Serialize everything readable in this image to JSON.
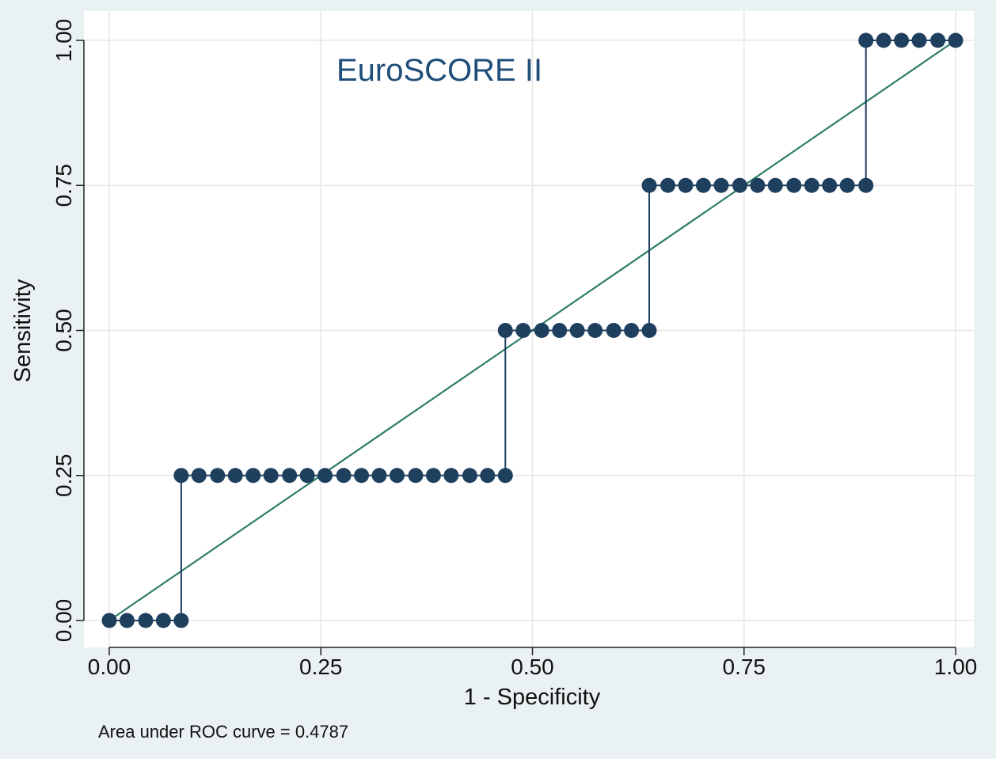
{
  "chart_data": {
    "type": "line",
    "title": "EuroSCORE II",
    "xlabel": "1 - Specificity",
    "ylabel": "Sensitivity",
    "xlim": [
      0,
      1
    ],
    "ylim": [
      0,
      1
    ],
    "x_ticks": [
      "0.00",
      "0.25",
      "0.50",
      "0.75",
      "1.00"
    ],
    "y_ticks": [
      "0.00",
      "0.25",
      "0.50",
      "0.75",
      "1.00"
    ],
    "grid": true,
    "note": "Area under ROC curve = 0.4787",
    "colors": {
      "curve": "#1f3f5f",
      "reference": "#2e7d6b",
      "grid": "#e6e6e6"
    },
    "reference_line": {
      "x": [
        0,
        1
      ],
      "y": [
        0,
        1
      ]
    },
    "series": [
      {
        "points": [
          {
            "x": 0.0,
            "y": 0.0
          },
          {
            "x": 0.021,
            "y": 0.0
          },
          {
            "x": 0.043,
            "y": 0.0
          },
          {
            "x": 0.064,
            "y": 0.0
          },
          {
            "x": 0.085,
            "y": 0.0
          },
          {
            "x": 0.085,
            "y": 0.25
          },
          {
            "x": 0.106,
            "y": 0.25
          },
          {
            "x": 0.128,
            "y": 0.25
          },
          {
            "x": 0.149,
            "y": 0.25
          },
          {
            "x": 0.17,
            "y": 0.25
          },
          {
            "x": 0.191,
            "y": 0.25
          },
          {
            "x": 0.213,
            "y": 0.25
          },
          {
            "x": 0.234,
            "y": 0.25
          },
          {
            "x": 0.255,
            "y": 0.25
          },
          {
            "x": 0.277,
            "y": 0.25
          },
          {
            "x": 0.298,
            "y": 0.25
          },
          {
            "x": 0.319,
            "y": 0.25
          },
          {
            "x": 0.34,
            "y": 0.25
          },
          {
            "x": 0.362,
            "y": 0.25
          },
          {
            "x": 0.383,
            "y": 0.25
          },
          {
            "x": 0.404,
            "y": 0.25
          },
          {
            "x": 0.426,
            "y": 0.25
          },
          {
            "x": 0.447,
            "y": 0.25
          },
          {
            "x": 0.468,
            "y": 0.25
          },
          {
            "x": 0.468,
            "y": 0.5
          },
          {
            "x": 0.489,
            "y": 0.5
          },
          {
            "x": 0.511,
            "y": 0.5
          },
          {
            "x": 0.532,
            "y": 0.5
          },
          {
            "x": 0.553,
            "y": 0.5
          },
          {
            "x": 0.574,
            "y": 0.5
          },
          {
            "x": 0.596,
            "y": 0.5
          },
          {
            "x": 0.617,
            "y": 0.5
          },
          {
            "x": 0.638,
            "y": 0.5
          },
          {
            "x": 0.638,
            "y": 0.75
          },
          {
            "x": 0.66,
            "y": 0.75
          },
          {
            "x": 0.681,
            "y": 0.75
          },
          {
            "x": 0.702,
            "y": 0.75
          },
          {
            "x": 0.723,
            "y": 0.75
          },
          {
            "x": 0.745,
            "y": 0.75
          },
          {
            "x": 0.766,
            "y": 0.75
          },
          {
            "x": 0.787,
            "y": 0.75
          },
          {
            "x": 0.809,
            "y": 0.75
          },
          {
            "x": 0.83,
            "y": 0.75
          },
          {
            "x": 0.851,
            "y": 0.75
          },
          {
            "x": 0.872,
            "y": 0.75
          },
          {
            "x": 0.894,
            "y": 0.75
          },
          {
            "x": 0.894,
            "y": 1.0
          },
          {
            "x": 0.915,
            "y": 1.0
          },
          {
            "x": 0.936,
            "y": 1.0
          },
          {
            "x": 0.957,
            "y": 1.0
          },
          {
            "x": 0.979,
            "y": 1.0
          },
          {
            "x": 1.0,
            "y": 1.0
          }
        ]
      }
    ]
  }
}
